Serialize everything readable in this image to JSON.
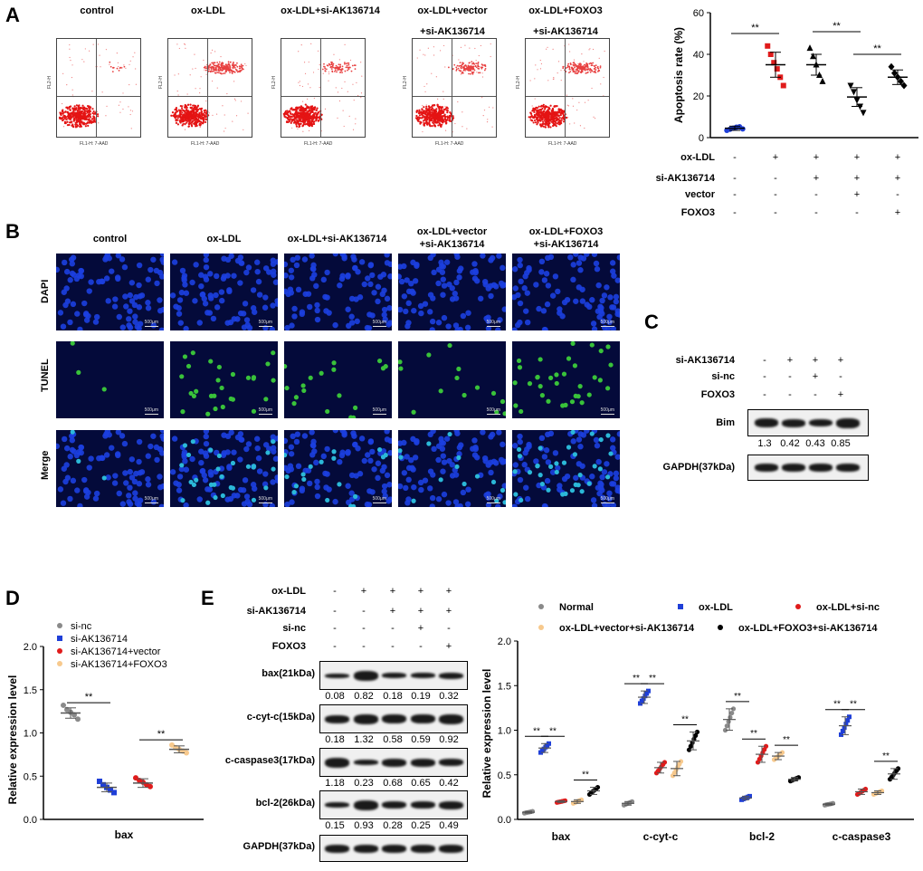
{
  "panels": {
    "A": "A",
    "B": "B",
    "C": "C",
    "D": "D",
    "E": "E"
  },
  "groups5": [
    "control",
    "ox-LDL",
    "ox-LDL+si-AK136714",
    "ox-LDL+vector",
    "+si-AK136714",
    "ox-LDL+FOXO3",
    "+si-AK136714"
  ],
  "groupsB": [
    "control",
    "ox-LDL",
    "ox-LDL+si-AK136714",
    "ox-LDL+vector",
    "+si-AK136714",
    "ox-LDL+FOXO3",
    "+si-AK136714"
  ],
  "flow": {
    "yaxis": "FL2-H",
    "xaxis": "FL1-H: 7-AAD"
  },
  "micro": {
    "rows": [
      "DAPI",
      "TUNEL",
      "Merge"
    ],
    "scale": "500μm",
    "colors": {
      "dapi": "#1c3fe0",
      "tunel": "#39c23a",
      "merge": "#2bb8d8",
      "bg": "#040a3a"
    }
  },
  "condA": {
    "labels": [
      "ox-LDL",
      "si-AK136714",
      "vector",
      "FOXO3"
    ],
    "signs": [
      [
        "-",
        "+",
        "+",
        "+",
        "+"
      ],
      [
        "-",
        "-",
        "+",
        "+",
        "+"
      ],
      [
        "-",
        "-",
        "-",
        "+",
        "-"
      ],
      [
        "-",
        "-",
        "-",
        "-",
        "+"
      ]
    ]
  },
  "condC": {
    "labels": [
      "si-AK136714",
      "si-nc",
      "FOXO3"
    ],
    "signs": [
      [
        "-",
        "+",
        "+",
        "+"
      ],
      [
        "-",
        "-",
        "+",
        "-"
      ],
      [
        "-",
        "-",
        "-",
        "+"
      ]
    ],
    "blots": [
      "Bim",
      "GAPDH(37kDa)"
    ],
    "quant": [
      "1.3",
      "0.42",
      "0.43",
      "0.85"
    ]
  },
  "condE": {
    "labels": [
      "ox-LDL",
      "si-AK136714",
      "si-nc",
      "FOXO3"
    ],
    "signs": [
      [
        "-",
        "+",
        "+",
        "+",
        "+"
      ],
      [
        "-",
        "-",
        "+",
        "+",
        "+"
      ],
      [
        "-",
        "-",
        "-",
        "+",
        "-"
      ],
      [
        "-",
        "-",
        "-",
        "-",
        "+"
      ]
    ],
    "blots": [
      "bax(21kDa)",
      "c-cyt-c(15kDa)",
      "c-caspase3(17kDa)",
      "bcl-2(26kDa)",
      "GAPDH(37kDa)"
    ],
    "quant": [
      [
        "0.08",
        "0.82",
        "0.18",
        "0.19",
        "0.32"
      ],
      [
        "0.18",
        "1.32",
        "0.58",
        "0.59",
        "0.92"
      ],
      [
        "1.18",
        "0.23",
        "0.68",
        "0.65",
        "0.42"
      ],
      [
        "0.15",
        "0.93",
        "0.28",
        "0.25",
        "0.49"
      ]
    ]
  },
  "legendD": [
    "si-nc",
    "si-AK136714",
    "si-AK136714+vector",
    "si-AK136714+FOXO3"
  ],
  "legendE": [
    "Normal",
    "ox-LDL",
    "ox-LDL+si-nc",
    "ox-LDL+vector+si-AK136714",
    "ox-LDL+FOXO3+si-AK136714"
  ],
  "sig": "**",
  "chart_data": [
    {
      "type": "scatter",
      "id": "A",
      "ylabel": "Apoptosis rate (%)",
      "ylim": [
        0,
        60
      ],
      "yticks": [
        0,
        20,
        40,
        60
      ],
      "categories": [
        "control",
        "ox-LDL",
        "ox-LDL+si-AK136714",
        "ox-LDL+vector+si-AK136714",
        "ox-LDL+FOXO3+si-AK136714"
      ],
      "colors": [
        "#1f3fd8",
        "#e01b1b",
        "#000000",
        "#000000",
        "#000000"
      ],
      "markers": [
        "circle",
        "square",
        "triangle",
        "triangle-down",
        "diamond"
      ],
      "means": [
        4.5,
        35,
        35,
        19.5,
        29
      ],
      "sd": [
        1,
        6,
        5,
        4.5,
        3.5
      ],
      "points": [
        [
          3.5,
          4,
          4.5,
          5,
          5.2,
          4.2
        ],
        [
          44,
          40,
          36,
          33,
          29,
          25
        ],
        [
          43,
          39,
          35,
          30,
          27
        ],
        [
          25,
          22,
          18,
          15,
          12
        ],
        [
          34,
          31,
          29,
          27,
          25
        ]
      ],
      "sig": [
        [
          0,
          1
        ],
        [
          2,
          3
        ],
        [
          3,
          4
        ]
      ]
    },
    {
      "type": "scatter",
      "id": "D",
      "ylabel": "Relative expression level",
      "xlabel": "bax",
      "ylim": [
        0,
        2.0
      ],
      "yticks": [
        "0.0",
        "0.5",
        "1.0",
        "1.5",
        "2.0"
      ],
      "categories": [
        "si-nc",
        "si-AK136714",
        "si-AK136714+vector",
        "si-AK136714+FOXO3"
      ],
      "colors": [
        "#8a8a8a",
        "#1f3fd8",
        "#e01b1b",
        "#f7c98d"
      ],
      "means": [
        1.23,
        0.37,
        0.42,
        0.81
      ],
      "sd": [
        0.06,
        0.05,
        0.05,
        0.04
      ],
      "points": [
        [
          1.32,
          1.27,
          1.24,
          1.21,
          1.16
        ],
        [
          0.44,
          0.4,
          0.37,
          0.34,
          0.31
        ],
        [
          0.48,
          0.45,
          0.43,
          0.4,
          0.38
        ],
        [
          0.86,
          0.83,
          0.81,
          0.79,
          0.77
        ]
      ],
      "sig": [
        [
          0,
          1
        ],
        [
          2,
          3
        ]
      ]
    },
    {
      "type": "scatter",
      "id": "E",
      "ylabel": "Relative expression level",
      "ylim": [
        0,
        2.0
      ],
      "yticks": [
        "0.0",
        "0.5",
        "1.0",
        "1.5",
        "2.0"
      ],
      "categories": [
        "bax",
        "c-cyt-c",
        "bcl-2",
        "c-caspase3"
      ],
      "series": [
        {
          "name": "Normal",
          "color": "#8a8a8a",
          "marker": "circle",
          "means": [
            0.08,
            0.18,
            1.12,
            0.17
          ],
          "sd": [
            0.01,
            0.02,
            0.12,
            0.01
          ]
        },
        {
          "name": "ox-LDL",
          "color": "#1f3fd8",
          "marker": "square",
          "means": [
            0.8,
            1.37,
            0.24,
            1.05
          ],
          "sd": [
            0.05,
            0.07,
            0.02,
            0.1
          ]
        },
        {
          "name": "ox-LDL+si-nc",
          "color": "#e01b1b",
          "marker": "circle",
          "means": [
            0.2,
            0.58,
            0.73,
            0.31
          ],
          "sd": [
            0.01,
            0.06,
            0.09,
            0.03
          ]
        },
        {
          "name": "ox-LDL+vector+si-AK136714",
          "color": "#f7c98d",
          "marker": "circle",
          "means": [
            0.2,
            0.57,
            0.71,
            0.3
          ],
          "sd": [
            0.02,
            0.08,
            0.04,
            0.02
          ]
        },
        {
          "name": "ox-LDL+FOXO3+si-AK136714",
          "color": "#000000",
          "marker": "circle",
          "means": [
            0.32,
            0.88,
            0.45,
            0.51
          ],
          "sd": [
            0.04,
            0.1,
            0.02,
            0.06
          ]
        }
      ],
      "sig": [
        [
          0,
          1
        ],
        [
          1,
          2
        ],
        [
          3,
          4
        ]
      ]
    }
  ]
}
